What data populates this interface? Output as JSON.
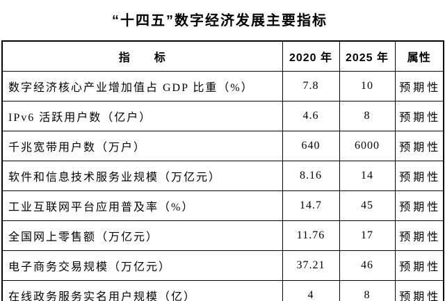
{
  "title": "“十四五”数字经济发展主要指标",
  "table": {
    "headers": [
      "指　　标",
      "2020 年",
      "2025 年",
      "属性"
    ],
    "rows": [
      {
        "indicator": "数字经济核心产业增加值占 GDP 比重（%）",
        "y2020": "7.8",
        "y2025": "10",
        "attribute": "预期性"
      },
      {
        "indicator": "IPv6 活跃用户数（亿户）",
        "y2020": "4.6",
        "y2025": "8",
        "attribute": "预期性"
      },
      {
        "indicator": "千兆宽带用户数（万户）",
        "y2020": "640",
        "y2025": "6000",
        "attribute": "预期性"
      },
      {
        "indicator": "软件和信息技术服务业规模（万亿元）",
        "y2020": "8.16",
        "y2025": "14",
        "attribute": "预期性"
      },
      {
        "indicator": "工业互联网平台应用普及率（%）",
        "y2020": "14.7",
        "y2025": "45",
        "attribute": "预期性"
      },
      {
        "indicator": "全国网上零售额（万亿元）",
        "y2020": "11.76",
        "y2025": "17",
        "attribute": "预期性"
      },
      {
        "indicator": "电子商务交易规模（万亿元）",
        "y2020": "37.21",
        "y2025": "46",
        "attribute": "预期性"
      },
      {
        "indicator": "在线政务服务实名用户规模（亿）",
        "y2020": "4",
        "y2025": "8",
        "attribute": "预期性"
      }
    ]
  },
  "colors": {
    "background": "#ffffff",
    "text": "#000000",
    "border": "#000000"
  }
}
